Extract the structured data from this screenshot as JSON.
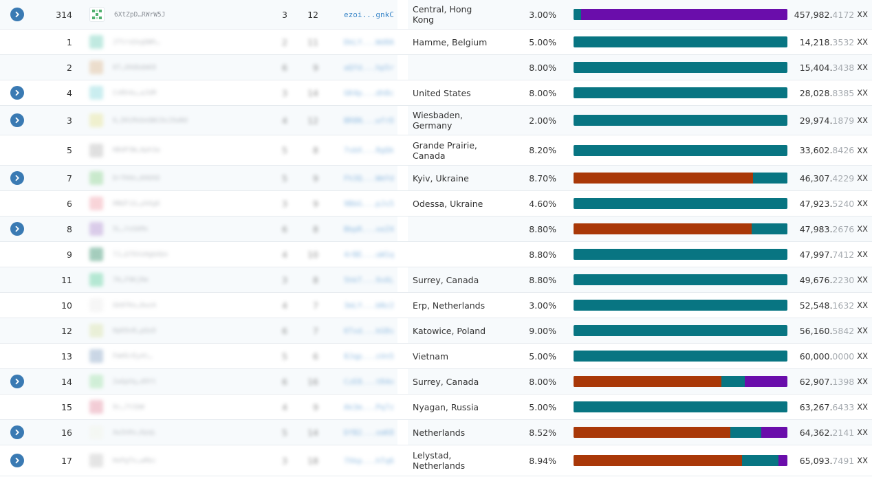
{
  "colors": {
    "expand_button": "#3a7ab3",
    "bar_teal": "#087582",
    "bar_orange": "#a93808",
    "bar_purple": "#6a0dab",
    "address_link": "#3a86c8",
    "row_alt": "#f7fafc"
  },
  "rows": [
    {
      "expand": true,
      "rank": "314",
      "ident_name": "6XtZpD…RWrW5J",
      "ident_color": "#4fb06e",
      "blurred": false,
      "n1": "3",
      "n2": "12",
      "addr": "ezoi...gnkC",
      "location": "Central, Hong Kong",
      "percent": "3.00%",
      "bar": [
        {
          "color": "#087582",
          "fraction": 0.035
        },
        {
          "color": "#6a0dab",
          "fraction": 0.965
        }
      ],
      "value_int": "457,982.",
      "value_dec": "4172",
      "currency": "XX"
    },
    {
      "expand": false,
      "rank": "1",
      "ident_name": "J7trsUxgQWh…",
      "ident_color": "#8dd8c8",
      "blurred": true,
      "n1": "2",
      "n2": "11",
      "addr": "DkLY...Wd8A",
      "location": "Hamme, Belgium",
      "percent": "5.00%",
      "bar": [
        {
          "color": "#087582",
          "fraction": 1.0
        }
      ],
      "value_int": "14,218.",
      "value_dec": "3532",
      "currency": "XX"
    },
    {
      "expand": false,
      "rank": "2",
      "ident_name": "6T…XHdbdmK8",
      "ident_color": "#e2c6a6",
      "blurred": true,
      "n1": "6",
      "n2": "9",
      "addr": "aQfd...hp5r",
      "location": "",
      "percent": "8.00%",
      "bar": [
        {
          "color": "#087582",
          "fraction": 1.0
        }
      ],
      "value_int": "15,404.",
      "value_dec": "3438",
      "currency": "XX"
    },
    {
      "expand": true,
      "rank": "4",
      "ident_name": "CnRh4u…aJUM",
      "ident_color": "#9fdfe3",
      "blurred": true,
      "n1": "3",
      "n2": "14",
      "addr": "GK4p...dh8c",
      "location": "United States",
      "percent": "8.00%",
      "bar": [
        {
          "color": "#087582",
          "fraction": 1.0
        }
      ],
      "value_int": "28,028.",
      "value_dec": "8385",
      "currency": "XX"
    },
    {
      "expand": true,
      "rank": "3",
      "ident_name": "6…5HiMxbeQWi9xJXwNd",
      "ident_color": "#e9e8a9",
      "blurred": true,
      "n1": "4",
      "n2": "12",
      "addr": "BR8N...wfrD",
      "location": "Wiesbaden, Germany",
      "percent": "2.00%",
      "bar": [
        {
          "color": "#087582",
          "fraction": 1.0
        }
      ],
      "value_int": "29,974.",
      "value_dec": "1879",
      "currency": "XX"
    },
    {
      "expand": false,
      "rank": "5",
      "ident_name": "HB4P3W…6ph3a",
      "ident_color": "#c6c6c6",
      "blurred": true,
      "n1": "5",
      "n2": "8",
      "addr": "7sbX...8gQk",
      "location": "Grande Prairie, Canada",
      "percent": "8.20%",
      "bar": [
        {
          "color": "#087582",
          "fraction": 1.0
        }
      ],
      "value_int": "33,602.",
      "value_dec": "8426",
      "currency": "XX"
    },
    {
      "expand": true,
      "rank": "7",
      "ident_name": "DrfH4n…KHUhD",
      "ident_color": "#a4dca6",
      "blurred": true,
      "n1": "5",
      "n2": "9",
      "addr": "Fh3Q...WmYd",
      "location": "Kyiv, Ukraine",
      "percent": "8.70%",
      "bar": [
        {
          "color": "#a93808",
          "fraction": 0.838
        },
        {
          "color": "#087582",
          "fraction": 0.162
        }
      ],
      "value_int": "46,307.",
      "value_dec": "4229",
      "currency": "XX"
    },
    {
      "expand": false,
      "rank": "6",
      "ident_name": "HNGFiU…yk6g6",
      "ident_color": "#f3b2ba",
      "blurred": true,
      "n1": "3",
      "n2": "9",
      "addr": "9BbG...pJs5",
      "location": "Odessa, Ukraine",
      "percent": "4.60%",
      "bar": [
        {
          "color": "#087582",
          "fraction": 1.0
        }
      ],
      "value_int": "47,923.",
      "value_dec": "5240",
      "currency": "XX"
    },
    {
      "expand": true,
      "rank": "8",
      "ident_name": "5L…YzGkMx",
      "ident_color": "#c2a6da",
      "blurred": true,
      "n1": "6",
      "n2": "8",
      "addr": "BbpR...xeZ4",
      "location": "",
      "percent": "8.80%",
      "bar": [
        {
          "color": "#a93808",
          "fraction": 0.834
        },
        {
          "color": "#087582",
          "fraction": 0.166
        }
      ],
      "value_int": "47,983.",
      "value_dec": "2676",
      "currency": "XX"
    },
    {
      "expand": false,
      "rank": "9",
      "ident_name": "7J…Gf6VsHgbAbn",
      "ident_color": "#5aa487",
      "blurred": true,
      "n1": "4",
      "n2": "10",
      "addr": "4rBE...uW1q",
      "location": "",
      "percent": "8.80%",
      "bar": [
        {
          "color": "#087582",
          "fraction": 1.0
        }
      ],
      "value_int": "47,997.",
      "value_dec": "7412",
      "currency": "XX"
    },
    {
      "expand": false,
      "rank": "11",
      "ident_name": "7H…F9KjRm",
      "ident_color": "#7fd9b2",
      "blurred": true,
      "n1": "3",
      "n2": "8",
      "addr": "5hkT...9s6L",
      "location": "Surrey, Canada",
      "percent": "8.80%",
      "bar": [
        {
          "color": "#087582",
          "fraction": 1.0
        }
      ],
      "value_int": "49,676.",
      "value_dec": "2230",
      "currency": "XX"
    },
    {
      "expand": false,
      "rank": "10",
      "ident_name": "Gk8fKo…DwzA",
      "ident_color": "#efefef",
      "blurred": true,
      "n1": "4",
      "n2": "7",
      "addr": "3mLY...bNz2",
      "location": "Erp, Netherlands",
      "percent": "3.00%",
      "bar": [
        {
          "color": "#087582",
          "fraction": 1.0
        }
      ],
      "value_int": "52,548.",
      "value_dec": "1632",
      "currency": "XX"
    },
    {
      "expand": false,
      "rank": "12",
      "ident_name": "HpK9vR…pQxD",
      "ident_color": "#dfe7b9",
      "blurred": true,
      "n1": "6",
      "n2": "7",
      "addr": "6Txd...kG8s",
      "location": "Katowice, Poland",
      "percent": "9.00%",
      "bar": [
        {
          "color": "#087582",
          "fraction": 1.0
        }
      ],
      "value_int": "56,160.",
      "value_dec": "5842",
      "currency": "XX"
    },
    {
      "expand": false,
      "rank": "13",
      "ident_name": "FmH5rEy4t…",
      "ident_color": "#9fb6d0",
      "blurred": true,
      "n1": "5",
      "n2": "6",
      "addr": "8Jqp...sVn5",
      "location": "Vietnam",
      "percent": "5.00%",
      "bar": [
        {
          "color": "#087582",
          "fraction": 1.0
        }
      ],
      "value_int": "60,000.",
      "value_dec": "0000",
      "currency": "XX"
    },
    {
      "expand": true,
      "rank": "14",
      "ident_name": "2wGpXq…d9Yt",
      "ident_color": "#b2e6b9",
      "blurred": true,
      "n1": "6",
      "n2": "16",
      "addr": "CzE8...tR4n",
      "location": "Surrey, Canada",
      "percent": "8.00%",
      "bar": [
        {
          "color": "#a93808",
          "fraction": 0.69
        },
        {
          "color": "#087582",
          "fraction": 0.11
        },
        {
          "color": "#6a0dab",
          "fraction": 0.2
        }
      ],
      "value_int": "62,907.",
      "value_dec": "1398",
      "currency": "XX"
    },
    {
      "expand": false,
      "rank": "15",
      "ident_name": "9c…7tSbW",
      "ident_color": "#e8a4b4",
      "blurred": true,
      "n1": "4",
      "n2": "9",
      "addr": "Ak3m...Pq7z",
      "location": "Nyagan, Russia",
      "percent": "5.00%",
      "bar": [
        {
          "color": "#087582",
          "fraction": 1.0
        }
      ],
      "value_int": "63,267.",
      "value_dec": "6433",
      "currency": "XX"
    },
    {
      "expand": true,
      "rank": "16",
      "ident_name": "Aw3nHv…KpqL",
      "ident_color": "#f2f5ec",
      "blurred": true,
      "n1": "5",
      "n2": "14",
      "addr": "DfB2...xmK8",
      "location": "Netherlands",
      "percent": "8.52%",
      "bar": [
        {
          "color": "#a93808",
          "fraction": 0.733
        },
        {
          "color": "#087582",
          "fraction": 0.146
        },
        {
          "color": "#6a0dab",
          "fraction": 0.121
        }
      ],
      "value_int": "64,362.",
      "value_dec": "2141",
      "currency": "XX"
    },
    {
      "expand": true,
      "rank": "17",
      "ident_name": "HePgTn…wRbc",
      "ident_color": "#cfcfcf",
      "blurred": true,
      "n1": "3",
      "n2": "18",
      "addr": "7Xkp...hTq6",
      "location": "Lelystad, Netherlands",
      "percent": "8.94%",
      "bar": [
        {
          "color": "#a93808",
          "fraction": 0.788
        },
        {
          "color": "#087582",
          "fraction": 0.171
        },
        {
          "color": "#6a0dab",
          "fraction": 0.041
        }
      ],
      "value_int": "65,093.",
      "value_dec": "7491",
      "currency": "XX"
    }
  ]
}
